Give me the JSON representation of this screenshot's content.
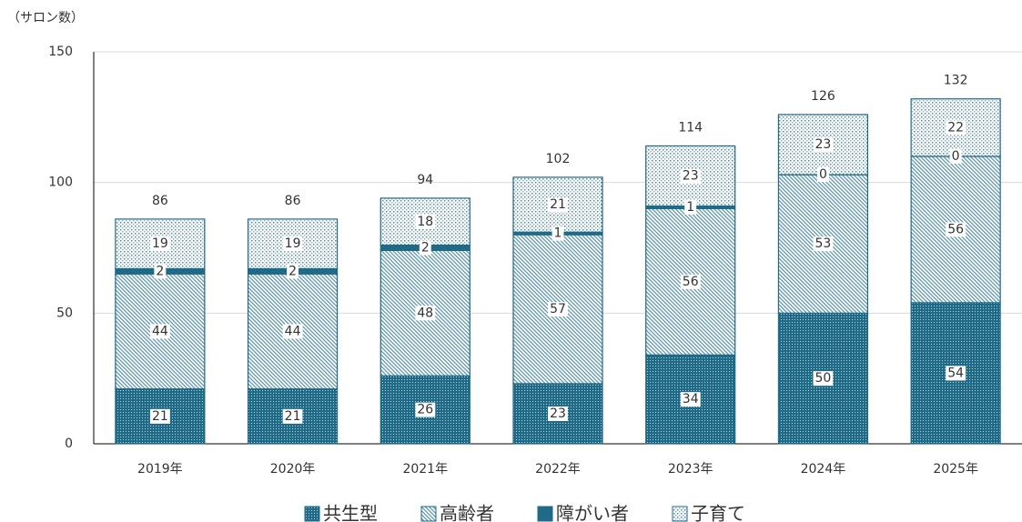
{
  "chart_data": {
    "type": "stacked_bar",
    "y_axis_label": "（サロン数）",
    "categories": [
      "2019年",
      "2020年",
      "2021年",
      "2022年",
      "2023年",
      "2024年",
      "2025年"
    ],
    "series": [
      {
        "name": "共生型",
        "color": "#1f6a87",
        "pattern": "dense-dots",
        "values": [
          21,
          21,
          26,
          23,
          34,
          50,
          54
        ]
      },
      {
        "name": "高齢者",
        "color": "#1f6a87",
        "pattern": "hatch",
        "values": [
          44,
          44,
          48,
          57,
          56,
          53,
          56
        ]
      },
      {
        "name": "障がい者",
        "color": "#1f6a87",
        "pattern": "solid",
        "values": [
          2,
          2,
          2,
          1,
          1,
          0,
          0
        ]
      },
      {
        "name": "子育て",
        "color": "#1f6a87",
        "pattern": "sparse-dots",
        "values": [
          19,
          19,
          18,
          21,
          23,
          23,
          22
        ]
      }
    ],
    "totals": [
      86,
      86,
      94,
      102,
      114,
      126,
      132
    ],
    "ylim": [
      0,
      150
    ],
    "yticks": [
      0,
      50,
      100,
      150
    ],
    "grid": true
  }
}
